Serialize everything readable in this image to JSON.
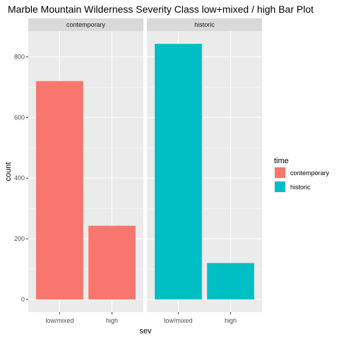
{
  "chart_data": {
    "type": "bar",
    "title": "Marble Mountain Wilderness Severity Class low+mixed / high Bar Plot",
    "xlabel": "sev",
    "ylabel": "count",
    "categories": [
      "low/mixed",
      "high"
    ],
    "facets": [
      {
        "label": "contemporary",
        "fill": "#F8766D",
        "values": [
          720,
          243
        ]
      },
      {
        "label": "historic",
        "fill": "#00BFC4",
        "values": [
          843,
          120
        ]
      }
    ],
    "yticks": [
      0,
      200,
      400,
      600,
      800
    ],
    "ylim": [
      -42,
      885
    ],
    "grid": true,
    "legend": {
      "title": "time",
      "position": "right",
      "items": [
        {
          "label": "contemporary",
          "color": "#F8766D"
        },
        {
          "label": "historic",
          "color": "#00BFC4"
        }
      ]
    },
    "colors": {
      "panel_bg": "#EBEBEB",
      "strip_bg": "#D9D9D9",
      "grid_major": "#FFFFFF",
      "tick": "#333333"
    }
  }
}
